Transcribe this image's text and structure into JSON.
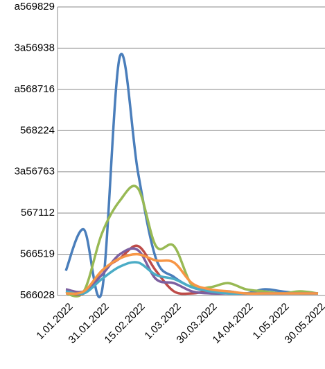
{
  "chart_data": {
    "type": "line",
    "categories": [
      "1.01.2022",
      null,
      "31.01.2022",
      null,
      "15.02.2022",
      null,
      "1.03.2022",
      null,
      "30.03.2022",
      null,
      "14.04.2022",
      null,
      "1.05.2022",
      null,
      "30.05.2022"
    ],
    "ylim": [
      0,
      7
    ],
    "yticks": [
      {
        "value": 0,
        "label": "566028"
      },
      {
        "value": 1,
        "label": "566519"
      },
      {
        "value": 2,
        "label": "567112"
      },
      {
        "value": 3,
        "label": "3a56763"
      },
      {
        "value": 4,
        "label": "568224"
      },
      {
        "value": 5,
        "label": "a568716"
      },
      {
        "value": 6,
        "label": "3a56938"
      },
      {
        "value": 7,
        "label": "a569829"
      }
    ],
    "grid": true,
    "series": [
      {
        "color": "#4a7ebb",
        "values": [
          0.6,
          1.6,
          0.1,
          5.8,
          3.0,
          0.9,
          0.45,
          0.2,
          0.1,
          0.1,
          0.05,
          0.15,
          0.1,
          0.05,
          0.05
        ]
      },
      {
        "color": "#98b954",
        "values": [
          0.05,
          0.1,
          1.5,
          2.3,
          2.6,
          1.2,
          1.2,
          0.25,
          0.2,
          0.3,
          0.15,
          0.1,
          0.05,
          0.1,
          0.05
        ]
      },
      {
        "color": "#be4b48",
        "values": [
          0.1,
          0.05,
          0.6,
          0.9,
          1.2,
          0.6,
          0.1,
          0.05,
          0.1,
          0.05,
          0.05,
          0.05,
          0.05,
          0.05,
          0.05
        ]
      },
      {
        "color": "#7d60a0",
        "values": [
          0.15,
          0.1,
          0.5,
          1.0,
          1.1,
          0.4,
          0.3,
          0.1,
          0.05,
          0.05,
          0.05,
          0.05,
          0.05,
          0.05,
          0.05
        ]
      },
      {
        "color": "#4bacc6",
        "values": [
          0.1,
          0.05,
          0.4,
          0.7,
          0.8,
          0.5,
          0.4,
          0.2,
          0.1,
          0.05,
          0.05,
          0.05,
          0.05,
          0.05,
          0.05
        ]
      },
      {
        "color": "#f79646",
        "values": [
          0.05,
          0.1,
          0.6,
          0.9,
          1.0,
          0.85,
          0.8,
          0.3,
          0.15,
          0.1,
          0.05,
          0.05,
          0.05,
          0.05,
          0.05
        ]
      }
    ]
  }
}
